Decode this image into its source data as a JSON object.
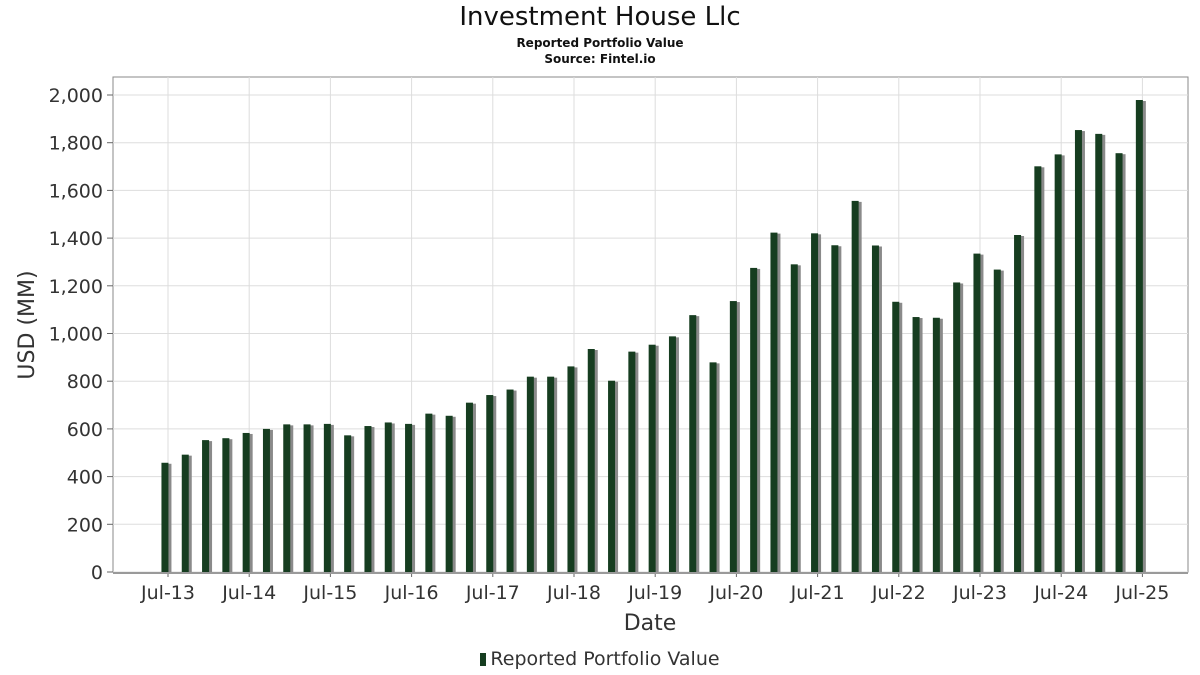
{
  "title": "Investment House Llc",
  "subtitle": "Reported Portfolio Value",
  "source": "Source: Fintel.io",
  "legend_label": "Reported Portfolio Value",
  "colors": {
    "bar": "#163d20",
    "bar_shadow": "#8a8a8a",
    "grid": "#dddddd",
    "frame": "#888888"
  },
  "chart_data": {
    "type": "bar",
    "xlabel": "Date",
    "ylabel": "USD (MM)",
    "ylim": [
      0,
      2000
    ],
    "yticks": [
      "0",
      "200",
      "400",
      "600",
      "800",
      "1,000",
      "1,200",
      "1,400",
      "1,600",
      "1,800",
      "2,000"
    ],
    "xtick_labels": [
      "Jul-13",
      "Jul-14",
      "Jul-15",
      "Jul-16",
      "Jul-17",
      "Jul-18",
      "Jul-19",
      "Jul-20",
      "Jul-21",
      "Jul-22",
      "Jul-23",
      "Jul-24",
      "Jul-25"
    ],
    "grid": true,
    "legend_position": "bottom",
    "series": [
      {
        "name": "Reported Portfolio Value",
        "values": [
          458,
          492,
          553,
          561,
          583,
          600,
          619,
          619,
          621,
          573,
          612,
          627,
          621,
          664,
          655,
          710,
          742,
          765,
          819,
          819,
          862,
          935,
          802,
          924,
          953,
          988,
          1077,
          879,
          1136,
          1275,
          1423,
          1290,
          1420,
          1370,
          1556,
          1369,
          1133,
          1069,
          1066,
          1214,
          1335,
          1268,
          1413,
          1701,
          1751,
          1853,
          1837,
          1756,
          1979
        ]
      }
    ]
  }
}
